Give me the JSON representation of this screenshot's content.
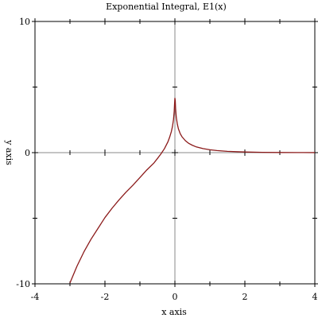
{
  "chart_data": {
    "type": "line",
    "title": "Exponential Integral, E1(x)",
    "xlabel": "x axis",
    "ylabel": "y axis",
    "xlim": [
      -4,
      4
    ],
    "ylim": [
      -10,
      10
    ],
    "x_ticks": [
      {
        "value": -4,
        "label": "-4"
      },
      {
        "value": -2,
        "label": "-2"
      },
      {
        "value": 0,
        "label": "0"
      },
      {
        "value": 2,
        "label": "2"
      },
      {
        "value": 4,
        "label": "4"
      }
    ],
    "y_ticks": [
      {
        "value": -10,
        "label": "-10"
      },
      {
        "value": 0,
        "label": "0"
      },
      {
        "value": 10,
        "label": "10"
      }
    ],
    "x_minor_ticks": [
      -3,
      -1,
      1,
      3
    ],
    "y_minor_ticks": [
      -5,
      5
    ],
    "zero_axes": true,
    "series": [
      {
        "color": "#8b1a1a",
        "x": [
          -3.0,
          -2.8,
          -2.6,
          -2.4,
          -2.2,
          -2.0,
          -1.8,
          -1.6,
          -1.4,
          -1.2,
          -1.0,
          -0.8,
          -0.6,
          -0.5,
          -0.4,
          -0.3,
          -0.2,
          -0.15,
          -0.1,
          -0.07,
          -0.04,
          -0.02,
          -0.01,
          0.0,
          0.01,
          0.02,
          0.04,
          0.07,
          0.1,
          0.15,
          0.2,
          0.3,
          0.4,
          0.5,
          0.6,
          0.8,
          1.0,
          1.2,
          1.5,
          2.0,
          2.5,
          3.0,
          3.5,
          4.0
        ],
        "y": [
          -9.93,
          -8.66,
          -7.56,
          -6.61,
          -5.78,
          -4.95,
          -4.25,
          -3.61,
          -3.02,
          -2.48,
          -1.9,
          -1.31,
          -0.79,
          -0.45,
          -0.1,
          0.3,
          0.82,
          1.18,
          1.62,
          1.99,
          2.52,
          3.15,
          3.7,
          4.15,
          3.98,
          3.36,
          2.68,
          2.17,
          1.82,
          1.46,
          1.22,
          0.91,
          0.7,
          0.56,
          0.45,
          0.31,
          0.22,
          0.16,
          0.1,
          0.05,
          0.025,
          0.013,
          0.007,
          0.004
        ]
      }
    ]
  }
}
